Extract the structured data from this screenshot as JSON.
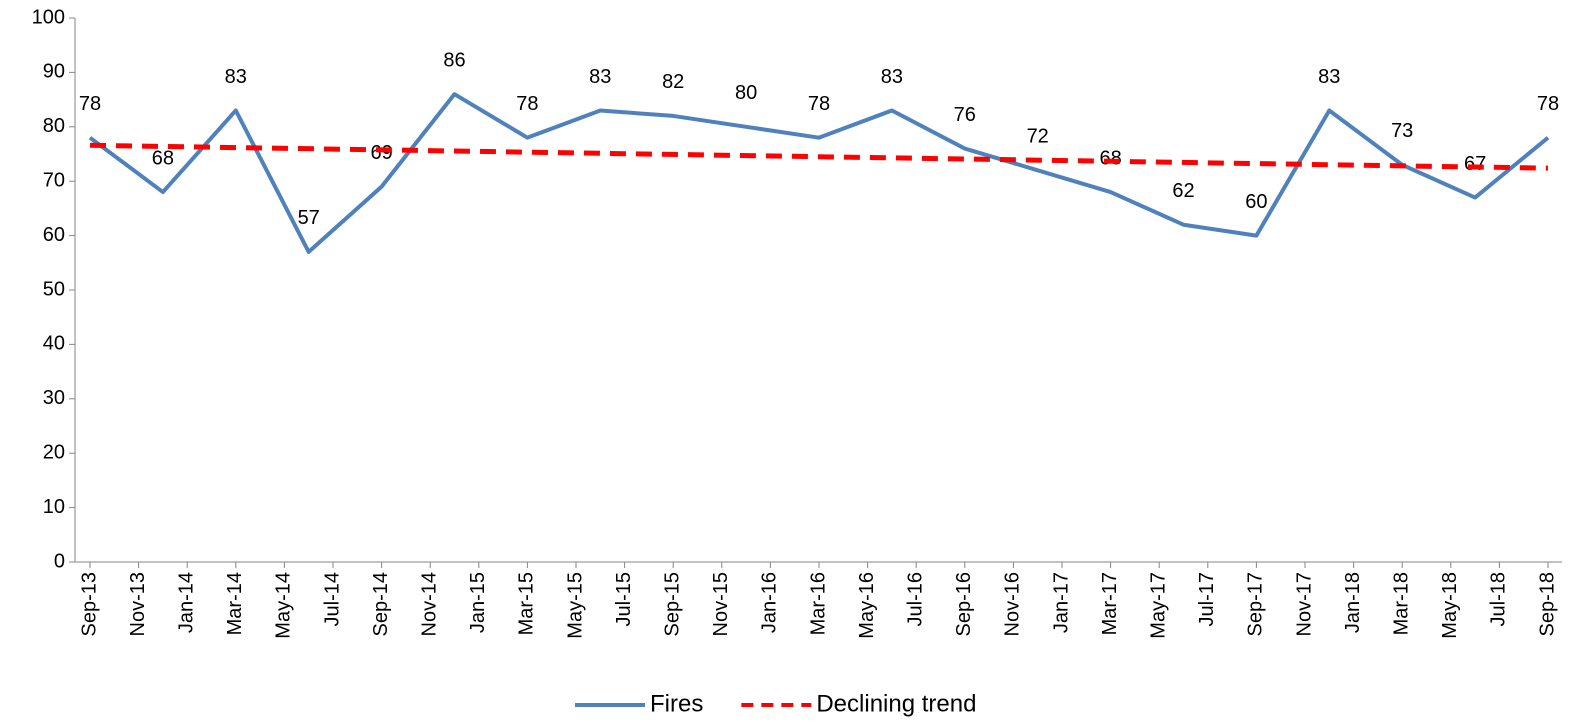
{
  "chart_data": {
    "type": "line",
    "xlim": [
      "2013-09",
      "2018-09"
    ],
    "xticks": [
      {
        "value": "2013-09",
        "label": "Sep-13"
      },
      {
        "value": "2013-11",
        "label": "Nov-13"
      },
      {
        "value": "2014-01",
        "label": "Jan-14"
      },
      {
        "value": "2014-03",
        "label": "Mar-14"
      },
      {
        "value": "2014-05",
        "label": "May-14"
      },
      {
        "value": "2014-07",
        "label": "Jul-14"
      },
      {
        "value": "2014-09",
        "label": "Sep-14"
      },
      {
        "value": "2014-11",
        "label": "Nov-14"
      },
      {
        "value": "2015-01",
        "label": "Jan-15"
      },
      {
        "value": "2015-03",
        "label": "Mar-15"
      },
      {
        "value": "2015-05",
        "label": "May-15"
      },
      {
        "value": "2015-07",
        "label": "Jul-15"
      },
      {
        "value": "2015-09",
        "label": "Sep-15"
      },
      {
        "value": "2015-11",
        "label": "Nov-15"
      },
      {
        "value": "2016-01",
        "label": "Jan-16"
      },
      {
        "value": "2016-03",
        "label": "Mar-16"
      },
      {
        "value": "2016-05",
        "label": "May-16"
      },
      {
        "value": "2016-07",
        "label": "Jul-16"
      },
      {
        "value": "2016-09",
        "label": "Sep-16"
      },
      {
        "value": "2016-11",
        "label": "Nov-16"
      },
      {
        "value": "2017-01",
        "label": "Jan-17"
      },
      {
        "value": "2017-03",
        "label": "Mar-17"
      },
      {
        "value": "2017-05",
        "label": "May-17"
      },
      {
        "value": "2017-07",
        "label": "Jul-17"
      },
      {
        "value": "2017-09",
        "label": "Sep-17"
      },
      {
        "value": "2017-11",
        "label": "Nov-17"
      },
      {
        "value": "2018-01",
        "label": "Jan-18"
      },
      {
        "value": "2018-03",
        "label": "Mar-18"
      },
      {
        "value": "2018-05",
        "label": "May-18"
      },
      {
        "value": "2018-07",
        "label": "Jul-18"
      },
      {
        "value": "2018-09",
        "label": "Sep-18"
      }
    ],
    "ylim": [
      0,
      100
    ],
    "yticks": [
      0,
      10,
      20,
      30,
      40,
      50,
      60,
      70,
      80,
      90,
      100
    ],
    "legend": "bottom",
    "series": [
      {
        "name": "Fires",
        "color": "#4f81bd",
        "dash": false,
        "data_labels": true,
        "x": [
          "2013-09",
          "2013-12",
          "2014-03",
          "2014-06",
          "2014-09",
          "2014-12",
          "2015-03",
          "2015-06",
          "2015-09",
          "2015-12",
          "2016-03",
          "2016-06",
          "2016-09",
          "2016-12",
          "2017-03",
          "2017-06",
          "2017-09",
          "2017-12",
          "2018-03",
          "2018-06",
          "2018-09"
        ],
        "values": [
          78,
          68,
          83,
          57,
          69,
          86,
          78,
          83,
          82,
          80,
          78,
          83,
          76,
          72,
          68,
          62,
          60,
          83,
          73,
          67,
          78
        ]
      },
      {
        "name": "Declining trend",
        "color": "#ff0000",
        "dash": true,
        "data_labels": false,
        "x": [
          "2013-09",
          "2018-09"
        ],
        "values": [
          76.6,
          72.4
        ]
      }
    ]
  }
}
